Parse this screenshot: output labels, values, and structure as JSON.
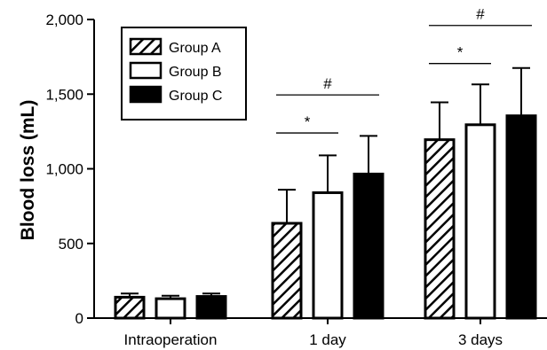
{
  "chart_data": {
    "type": "bar",
    "title": "",
    "xlabel": "",
    "ylabel": "Blood loss (mL)",
    "ylim": [
      0,
      2000
    ],
    "yticks": [
      0,
      500,
      1000,
      1500,
      2000
    ],
    "ytick_labels": [
      "0",
      "500",
      "1,000",
      "1,500",
      "2,000"
    ],
    "categories": [
      "Intraoperation",
      "1 day",
      "3 days"
    ],
    "series": [
      {
        "name": "Group A",
        "fill": "hatch",
        "values": [
          140,
          635,
          1195
        ],
        "errors": [
          25,
          225,
          250
        ]
      },
      {
        "name": "Group B",
        "fill": "#ffffff",
        "values": [
          130,
          840,
          1295
        ],
        "errors": [
          20,
          250,
          270
        ]
      },
      {
        "name": "Group C",
        "fill": "#000000",
        "values": [
          145,
          965,
          1355
        ],
        "errors": [
          20,
          255,
          320
        ]
      }
    ],
    "legend": "top-left",
    "grid": false,
    "annotations": [
      {
        "text": "*",
        "category": "1 day",
        "between": [
          "Group A",
          "Group B"
        ],
        "y": 1240
      },
      {
        "text": "#",
        "category": "1 day",
        "between": [
          "Group A",
          "Group C"
        ],
        "y": 1495
      },
      {
        "text": "*",
        "category": "3 days",
        "between": [
          "Group A",
          "Group B"
        ],
        "y": 1705
      },
      {
        "text": "#",
        "category": "3 days",
        "between": [
          "Group A",
          "Group C"
        ],
        "y": 1960
      }
    ]
  }
}
